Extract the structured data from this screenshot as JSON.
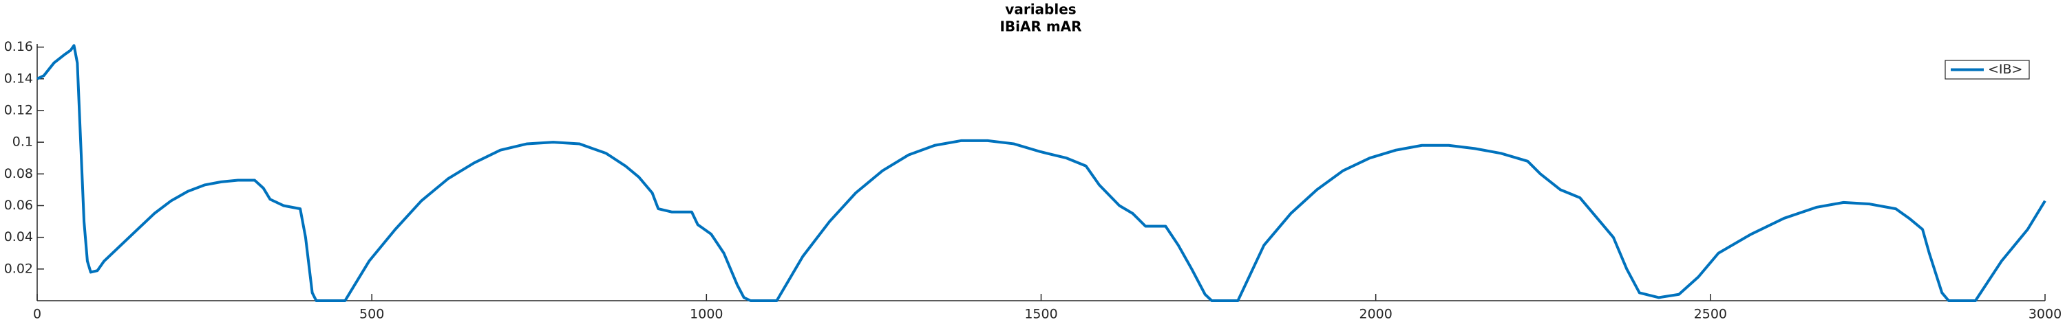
{
  "chart_data": {
    "type": "line",
    "title": "variables",
    "subtitle": "IBiAR mAR",
    "x": [
      0,
      10,
      25,
      40,
      50,
      55,
      60,
      65,
      70,
      75,
      80,
      90,
      100,
      125,
      150,
      175,
      200,
      225,
      250,
      275,
      300,
      325,
      338,
      348,
      368,
      393,
      401,
      411,
      417,
      460,
      496,
      535,
      574,
      614,
      653,
      692,
      732,
      771,
      810,
      830,
      850,
      879,
      899,
      919,
      928,
      948,
      978,
      987,
      1007,
      1026,
      1046,
      1056,
      1066,
      1105,
      1144,
      1184,
      1223,
      1263,
      1302,
      1341,
      1381,
      1420,
      1459,
      1499,
      1538,
      1567,
      1587,
      1617,
      1637,
      1656,
      1686,
      1705,
      1725,
      1745,
      1755,
      1794,
      1833,
      1873,
      1912,
      1951,
      1991,
      2030,
      2069,
      2109,
      2148,
      2187,
      2227,
      2246,
      2276,
      2305,
      2335,
      2355,
      2375,
      2394,
      2423,
      2453,
      2482,
      2512,
      2561,
      2610,
      2659,
      2699,
      2738,
      2777,
      2797,
      2817,
      2827,
      2846,
      2856,
      2896,
      2935,
      2974,
      3000
    ],
    "series": [
      {
        "name": "<IB>",
        "color": "#0072bd",
        "values": [
          0.14,
          0.142,
          0.15,
          0.155,
          0.158,
          0.161,
          0.15,
          0.1,
          0.05,
          0.025,
          0.018,
          0.019,
          0.025,
          0.035,
          0.045,
          0.055,
          0.063,
          0.069,
          0.073,
          0.075,
          0.076,
          0.076,
          0.071,
          0.064,
          0.06,
          0.058,
          0.04,
          0.005,
          0,
          0,
          0.025,
          0.045,
          0.063,
          0.077,
          0.087,
          0.095,
          0.099,
          0.1,
          0.099,
          0.096,
          0.093,
          0.085,
          0.078,
          0.068,
          0.058,
          0.056,
          0.056,
          0.048,
          0.042,
          0.03,
          0.01,
          0.002,
          0,
          0,
          0.028,
          0.05,
          0.068,
          0.082,
          0.092,
          0.098,
          0.101,
          0.101,
          0.099,
          0.094,
          0.09,
          0.085,
          0.073,
          0.06,
          0.055,
          0.047,
          0.047,
          0.035,
          0.02,
          0.004,
          0,
          0,
          0.035,
          0.055,
          0.07,
          0.082,
          0.09,
          0.095,
          0.098,
          0.098,
          0.096,
          0.093,
          0.088,
          0.08,
          0.07,
          0.065,
          0.05,
          0.04,
          0.02,
          0.005,
          0.002,
          0.004,
          0.015,
          0.03,
          0.042,
          0.052,
          0.059,
          0.062,
          0.061,
          0.058,
          0.052,
          0.045,
          0.03,
          0.005,
          0,
          0,
          0.025,
          0.045,
          0.063
        ]
      }
    ],
    "xlim": [
      0,
      3000
    ],
    "xticks": [
      0,
      500,
      1000,
      1500,
      2000,
      2500,
      3000
    ],
    "ylim": [
      0,
      0.162
    ],
    "yticks": [
      0.02,
      0.04,
      0.06,
      0.08,
      0.1,
      0.12,
      0.14,
      0.16
    ],
    "legend": "top-right"
  }
}
